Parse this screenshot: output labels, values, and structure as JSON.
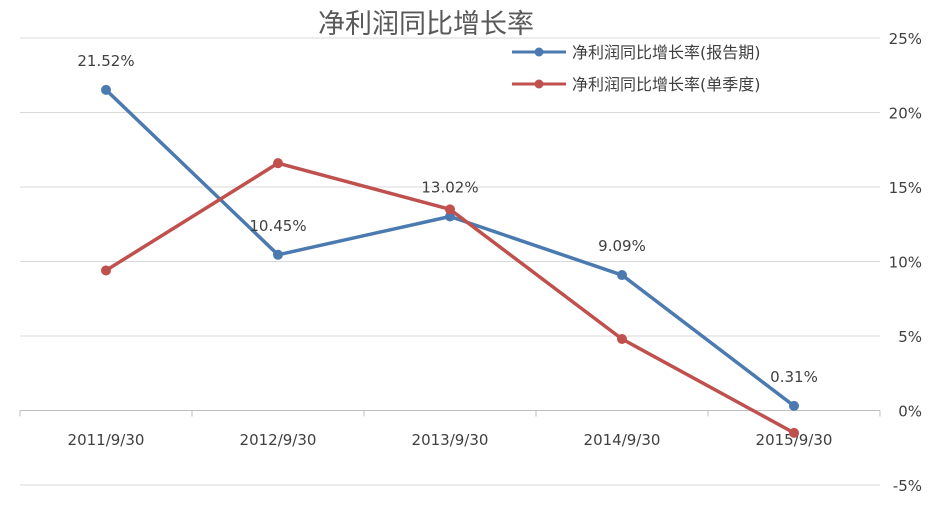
{
  "chart_data": {
    "type": "line",
    "title": "净利润同比增长率",
    "categories": [
      "2011/9/30",
      "2012/9/30",
      "2013/9/30",
      "2014/9/30",
      "2015/9/30"
    ],
    "series": [
      {
        "name": "净利润同比增长率(报告期)",
        "color": "#4a7ab0",
        "values": [
          21.52,
          10.45,
          13.02,
          9.09,
          0.31
        ],
        "labels": [
          "21.52%",
          "10.45%",
          "13.02%",
          "9.09%",
          "0.31%"
        ]
      },
      {
        "name": "净利润同比增长率(单季度)",
        "color": "#c0504d",
        "values": [
          9.4,
          16.6,
          13.5,
          4.8,
          -1.5
        ]
      }
    ],
    "ylim": [
      -5,
      25
    ],
    "yticks": [
      -5,
      0,
      5,
      10,
      15,
      20,
      25
    ],
    "ytick_labels": [
      "-5%",
      "0%",
      "5%",
      "10%",
      "15%",
      "20%",
      "25%"
    ],
    "axis_position": "right",
    "grid": true,
    "legend_position": "top-right"
  }
}
